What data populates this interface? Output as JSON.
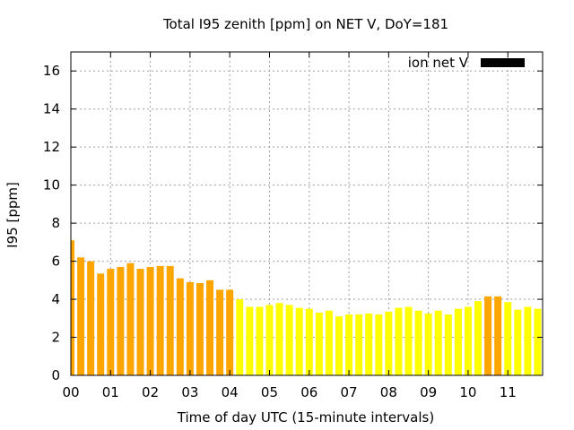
{
  "chart_data": {
    "type": "bar",
    "title": "Total I95 zenith [ppm] on NET V, DoY=181",
    "xlabel": "Time of day UTC (15-minute intervals)",
    "ylabel": "I95 [ppm]",
    "ylim": [
      0,
      17
    ],
    "y_ticks": [
      0,
      2,
      4,
      6,
      8,
      10,
      12,
      14,
      16
    ],
    "x_ticks": [
      "00",
      "01",
      "02",
      "03",
      "04",
      "05",
      "06",
      "07",
      "08",
      "09",
      "10",
      "11"
    ],
    "grid": true,
    "legend": {
      "label": "ion net V",
      "color": "#000000",
      "placement": "top-right"
    },
    "colors": {
      "orange": "#ffa500",
      "yellow": "#ffff00"
    },
    "bars": [
      {
        "x": 0.0,
        "value": 7.1,
        "color": "orange"
      },
      {
        "x": 0.25,
        "value": 6.2,
        "color": "orange"
      },
      {
        "x": 0.5,
        "value": 6.0,
        "color": "orange"
      },
      {
        "x": 0.75,
        "value": 5.35,
        "color": "orange"
      },
      {
        "x": 1.0,
        "value": 5.6,
        "color": "orange"
      },
      {
        "x": 1.25,
        "value": 5.7,
        "color": "orange"
      },
      {
        "x": 1.5,
        "value": 5.9,
        "color": "orange"
      },
      {
        "x": 1.75,
        "value": 5.6,
        "color": "orange"
      },
      {
        "x": 2.0,
        "value": 5.7,
        "color": "orange"
      },
      {
        "x": 2.25,
        "value": 5.75,
        "color": "orange"
      },
      {
        "x": 2.5,
        "value": 5.75,
        "color": "orange"
      },
      {
        "x": 2.75,
        "value": 5.1,
        "color": "orange"
      },
      {
        "x": 3.0,
        "value": 4.9,
        "color": "orange"
      },
      {
        "x": 3.25,
        "value": 4.85,
        "color": "orange"
      },
      {
        "x": 3.5,
        "value": 5.0,
        "color": "orange"
      },
      {
        "x": 3.75,
        "value": 4.5,
        "color": "orange"
      },
      {
        "x": 4.0,
        "value": 4.5,
        "color": "orange"
      },
      {
        "x": 4.25,
        "value": 4.0,
        "color": "yellow"
      },
      {
        "x": 4.5,
        "value": 3.6,
        "color": "yellow"
      },
      {
        "x": 4.75,
        "value": 3.6,
        "color": "yellow"
      },
      {
        "x": 5.0,
        "value": 3.7,
        "color": "yellow"
      },
      {
        "x": 5.25,
        "value": 3.8,
        "color": "yellow"
      },
      {
        "x": 5.5,
        "value": 3.7,
        "color": "yellow"
      },
      {
        "x": 5.75,
        "value": 3.55,
        "color": "yellow"
      },
      {
        "x": 6.0,
        "value": 3.5,
        "color": "yellow"
      },
      {
        "x": 6.25,
        "value": 3.3,
        "color": "yellow"
      },
      {
        "x": 6.5,
        "value": 3.4,
        "color": "yellow"
      },
      {
        "x": 6.75,
        "value": 3.1,
        "color": "yellow"
      },
      {
        "x": 7.0,
        "value": 3.2,
        "color": "yellow"
      },
      {
        "x": 7.25,
        "value": 3.2,
        "color": "yellow"
      },
      {
        "x": 7.5,
        "value": 3.25,
        "color": "yellow"
      },
      {
        "x": 7.75,
        "value": 3.2,
        "color": "yellow"
      },
      {
        "x": 8.0,
        "value": 3.35,
        "color": "yellow"
      },
      {
        "x": 8.25,
        "value": 3.55,
        "color": "yellow"
      },
      {
        "x": 8.5,
        "value": 3.6,
        "color": "yellow"
      },
      {
        "x": 8.75,
        "value": 3.4,
        "color": "yellow"
      },
      {
        "x": 9.0,
        "value": 3.25,
        "color": "yellow"
      },
      {
        "x": 9.25,
        "value": 3.4,
        "color": "yellow"
      },
      {
        "x": 9.5,
        "value": 3.2,
        "color": "yellow"
      },
      {
        "x": 9.75,
        "value": 3.5,
        "color": "yellow"
      },
      {
        "x": 10.0,
        "value": 3.6,
        "color": "yellow"
      },
      {
        "x": 10.25,
        "value": 3.9,
        "color": "yellow"
      },
      {
        "x": 10.5,
        "value": 4.15,
        "color": "orange"
      },
      {
        "x": 10.75,
        "value": 4.15,
        "color": "orange"
      },
      {
        "x": 11.0,
        "value": 3.85,
        "color": "yellow"
      },
      {
        "x": 11.25,
        "value": 3.45,
        "color": "yellow"
      },
      {
        "x": 11.5,
        "value": 3.6,
        "color": "yellow"
      },
      {
        "x": 11.75,
        "value": 3.5,
        "color": "yellow"
      }
    ]
  }
}
